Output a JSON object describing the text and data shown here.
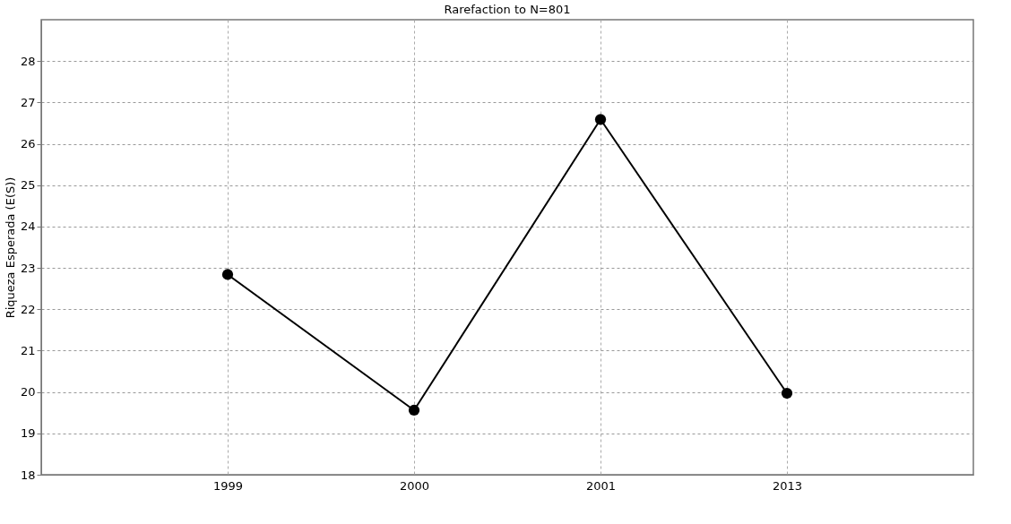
{
  "chart_data": {
    "type": "line",
    "title": "Rarefaction to N=801",
    "ylabel": "Riqueza Esperada (E(S))",
    "categories": [
      "1999",
      "2000",
      "2001",
      "2013"
    ],
    "series": [
      {
        "color": "#000000",
        "values": [
          22.84,
          19.56,
          26.59,
          19.97
        ]
      }
    ],
    "ylim": [
      18,
      29
    ],
    "yticks": [
      18,
      19,
      20,
      21,
      22,
      23,
      24,
      25,
      26,
      27,
      28
    ],
    "grid": true,
    "marker": "circle",
    "line_style": "solid"
  }
}
